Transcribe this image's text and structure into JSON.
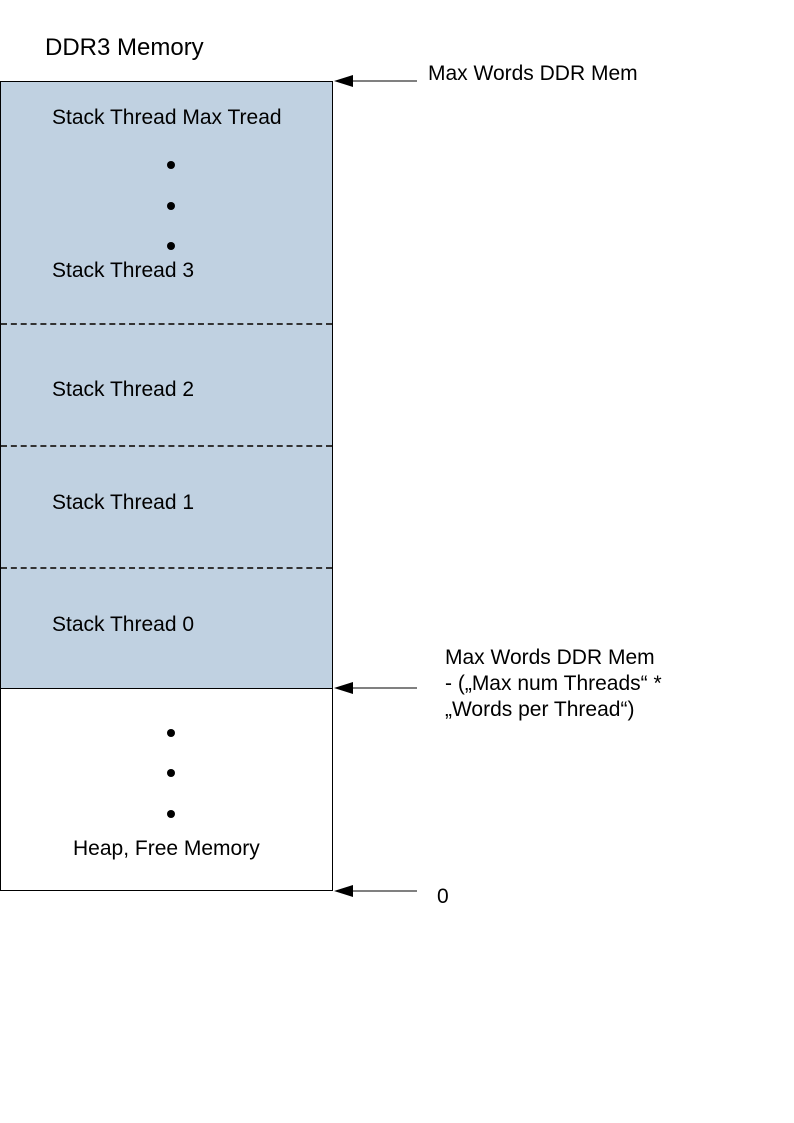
{
  "diagram": {
    "title": "DDR3 Memory",
    "stack_labels": {
      "max": "Stack Thread Max Tread",
      "t3": "Stack Thread 3",
      "t2": "Stack Thread 2",
      "t1": "Stack Thread 1",
      "t0": "Stack Thread 0"
    },
    "heap_label": "Heap, Free Memory",
    "annotations": {
      "top": "Max Words DDR Mem",
      "middle_line1": "Max Words DDR Mem",
      "middle_line2": "- („Max num Threads“ *",
      "middle_line3": "„Words per Thread“)",
      "bottom": "0"
    },
    "colors": {
      "stack_fill": "#c0d1e1",
      "outline": "#000000"
    }
  }
}
